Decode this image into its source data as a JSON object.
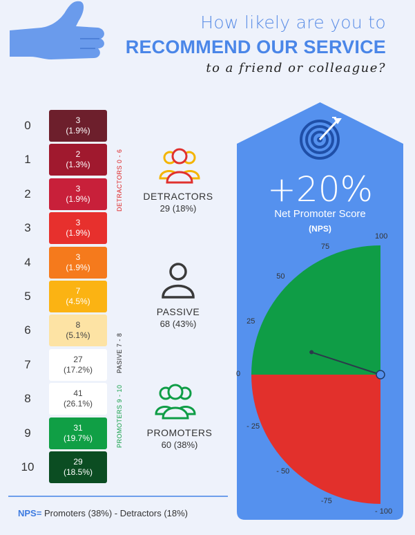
{
  "header": {
    "line1": "How likely are you to",
    "line2": "RECOMMEND OUR SERVICE",
    "line3": "to a friend or colleague?"
  },
  "chart_data": {
    "type": "table",
    "scores": [
      {
        "score": "0",
        "count": "3",
        "pct": "(1.9%)",
        "color": "#6d1f2c",
        "text": "#ffffff"
      },
      {
        "score": "1",
        "count": "2",
        "pct": "(1.3%)",
        "color": "#a0192e",
        "text": "#ffffff"
      },
      {
        "score": "2",
        "count": "3",
        "pct": "(1.9%)",
        "color": "#c8203a",
        "text": "#ffffff"
      },
      {
        "score": "3",
        "count": "3",
        "pct": "(1.9%)",
        "color": "#e7302d",
        "text": "#ffffff"
      },
      {
        "score": "4",
        "count": "3",
        "pct": "(1.9%)",
        "color": "#f57a1c",
        "text": "#ffffff"
      },
      {
        "score": "5",
        "count": "7",
        "pct": "(4.5%)",
        "color": "#fbb313",
        "text": "#ffffff"
      },
      {
        "score": "6",
        "count": "8",
        "pct": "(5.1%)",
        "color": "#fde3a4",
        "text": "#444444"
      },
      {
        "score": "7",
        "count": "27",
        "pct": "(17.2%)",
        "color": "#ffffff",
        "text": "#444444"
      },
      {
        "score": "8",
        "count": "41",
        "pct": "(26.1%)",
        "color": "#ffffff",
        "text": "#444444"
      },
      {
        "score": "9",
        "count": "31",
        "pct": "(19.7%)",
        "color": "#109f45",
        "text": "#ffffff"
      },
      {
        "score": "10",
        "count": "29",
        "pct": "(18.5%)",
        "color": "#0b4d22",
        "text": "#ffffff"
      }
    ],
    "bracket_labels": {
      "detractors": "DETRACTORS 0 - 6",
      "passive": "PASIVE 7 - 8",
      "promoters": "PROMOTERS 9 - 10"
    },
    "groups": {
      "detractors": {
        "name": "DETRACTORS",
        "value": "29 (18%)"
      },
      "passive": {
        "name": "PASSIVE",
        "value": "68 (43%)"
      },
      "promoters": {
        "name": "PROMOTERS",
        "value": "60 (38%)"
      }
    },
    "nps": {
      "value_label": "+20%",
      "value": 20,
      "label": "Net Promoter Score",
      "abbr": "(NPS)"
    },
    "gauge": {
      "range": [
        -100,
        100
      ],
      "ticks": [
        "100",
        "75",
        "50",
        "25",
        "0",
        "- 25",
        "- 50",
        "-75",
        "- 100"
      ],
      "tick_values": [
        100,
        75,
        50,
        25,
        0,
        -25,
        -50,
        -75,
        -100
      ],
      "positive_color": "#0f9d46",
      "negative_color": "#e2302c"
    }
  },
  "formula": {
    "prefix": "NPS=",
    "text": " Promoters (38%) - Detractors (18%)"
  },
  "colors": {
    "accent": "#4a86e8",
    "panel": "#5591ee",
    "detractor_icon": "#e0312e",
    "detractor_icon_2": "#f4b400",
    "passive_icon": "#3a3a3a",
    "promoter_icon": "#0f9d46"
  }
}
